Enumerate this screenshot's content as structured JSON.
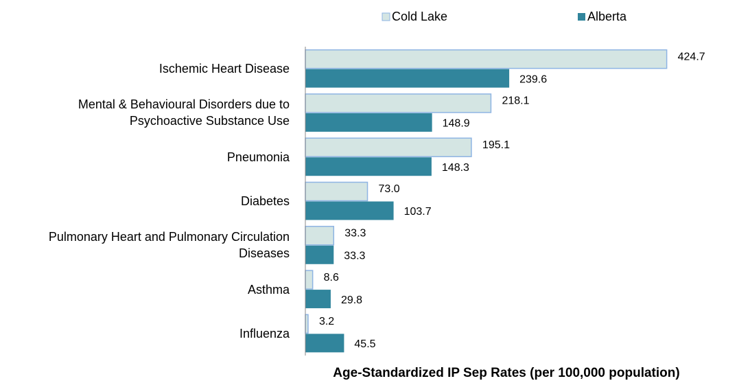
{
  "chart_data": {
    "type": "bar",
    "orientation": "horizontal",
    "x_label": "Age-Standardized IP Sep Rates (per 100,000 population)",
    "categories": [
      "Ischemic Heart Disease",
      "Mental & Behavioural Disorders due to Psychoactive Substance Use",
      "Pneumonia",
      "Diabetes",
      "Pulmonary Heart and Pulmonary Circulation Diseases",
      "Asthma",
      "Influenza"
    ],
    "series": [
      {
        "name": "Cold Lake",
        "color": "#d4e5e3",
        "values": [
          424.7,
          218.1,
          195.1,
          73.0,
          33.3,
          8.6,
          3.2
        ],
        "value_labels": [
          "424.7",
          "218.1",
          "195.1",
          "73.0",
          "33.3",
          "8.6",
          "3.2"
        ]
      },
      {
        "name": "Alberta",
        "color": "#31859c",
        "values": [
          239.6,
          148.9,
          148.3,
          103.7,
          33.3,
          29.8,
          45.5
        ],
        "value_labels": [
          "239.6",
          "148.9",
          "148.3",
          "103.7",
          "33.3",
          "29.8",
          "45.5"
        ]
      }
    ],
    "xlim": [
      0,
      500
    ],
    "legend": "top"
  }
}
